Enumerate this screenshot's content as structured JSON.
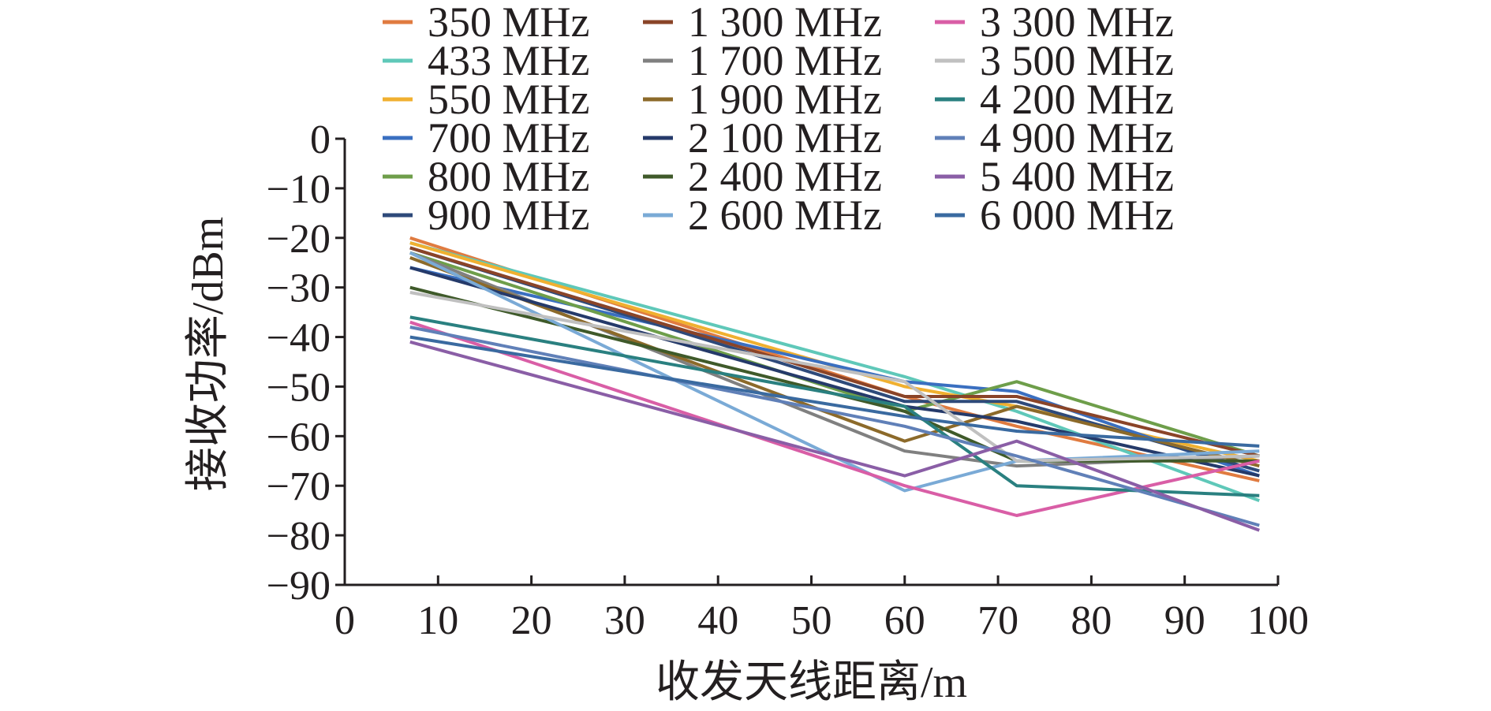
{
  "chart_data": {
    "type": "line",
    "xlabel": "收发天线距离/m",
    "ylabel": "接收功率/dBm",
    "xlim": [
      0,
      100
    ],
    "ylim": [
      -90,
      0
    ],
    "xticks": [
      "0",
      "10",
      "20",
      "30",
      "40",
      "50",
      "60",
      "70",
      "80",
      "90",
      "100"
    ],
    "yticks": [
      "0",
      "−10",
      "−20",
      "−30",
      "−40",
      "−50",
      "−60",
      "−70",
      "−80",
      "−90"
    ],
    "grid": false,
    "legend_position": "top",
    "x": [
      7,
      60,
      72,
      98
    ],
    "series": [
      {
        "name": "350 MHz",
        "color": "#e07b40",
        "values": [
          -20,
          -52,
          -58,
          -69
        ]
      },
      {
        "name": "433 MHz",
        "color": "#5fc8b9",
        "values": [
          -21,
          -48,
          -55,
          -73
        ]
      },
      {
        "name": "550 MHz",
        "color": "#f0b030",
        "values": [
          -21,
          -50,
          -54,
          -65
        ]
      },
      {
        "name": "700 MHz",
        "color": "#3a6fc0",
        "values": [
          -26,
          -49,
          -51,
          -68
        ]
      },
      {
        "name": "800 MHz",
        "color": "#6e9e4a",
        "values": [
          -23,
          -55,
          -49,
          -64
        ]
      },
      {
        "name": "900 MHz",
        "color": "#2e4a7a",
        "values": [
          -22,
          -53,
          -53,
          -67
        ]
      },
      {
        "name": "1 300 MHz",
        "color": "#8a4428",
        "values": [
          -22,
          -52,
          -52,
          -64
        ]
      },
      {
        "name": "1 700 MHz",
        "color": "#808080",
        "values": [
          -23,
          -63,
          -66,
          -64
        ]
      },
      {
        "name": "1 900 MHz",
        "color": "#8c6a2a",
        "values": [
          -24,
          -61,
          -54,
          -66
        ]
      },
      {
        "name": "2 100 MHz",
        "color": "#253a6a",
        "values": [
          -26,
          -54,
          -57,
          -68
        ]
      },
      {
        "name": "2 400 MHz",
        "color": "#3f5a2a",
        "values": [
          -30,
          -55,
          -65,
          -65
        ]
      },
      {
        "name": "2 600 MHz",
        "color": "#7aaad6",
        "values": [
          -23,
          -71,
          -65,
          -63
        ]
      },
      {
        "name": "3 300 MHz",
        "color": "#d95ea6",
        "values": [
          -37,
          -70,
          -76,
          -65
        ]
      },
      {
        "name": "3 500 MHz",
        "color": "#c0c0c0",
        "values": [
          -31,
          -49,
          -65,
          -64
        ]
      },
      {
        "name": "4 200 MHz",
        "color": "#2a8080",
        "values": [
          -36,
          -54,
          -70,
          -72
        ]
      },
      {
        "name": "4 900 MHz",
        "color": "#6080b8",
        "values": [
          -38,
          -58,
          -64,
          -78
        ]
      },
      {
        "name": "5 400 MHz",
        "color": "#8a5ea6",
        "values": [
          -41,
          -68,
          -61,
          -79
        ]
      },
      {
        "name": "6 000 MHz",
        "color": "#3a6aa0",
        "values": [
          -40,
          -56,
          -59,
          -62
        ]
      }
    ]
  }
}
